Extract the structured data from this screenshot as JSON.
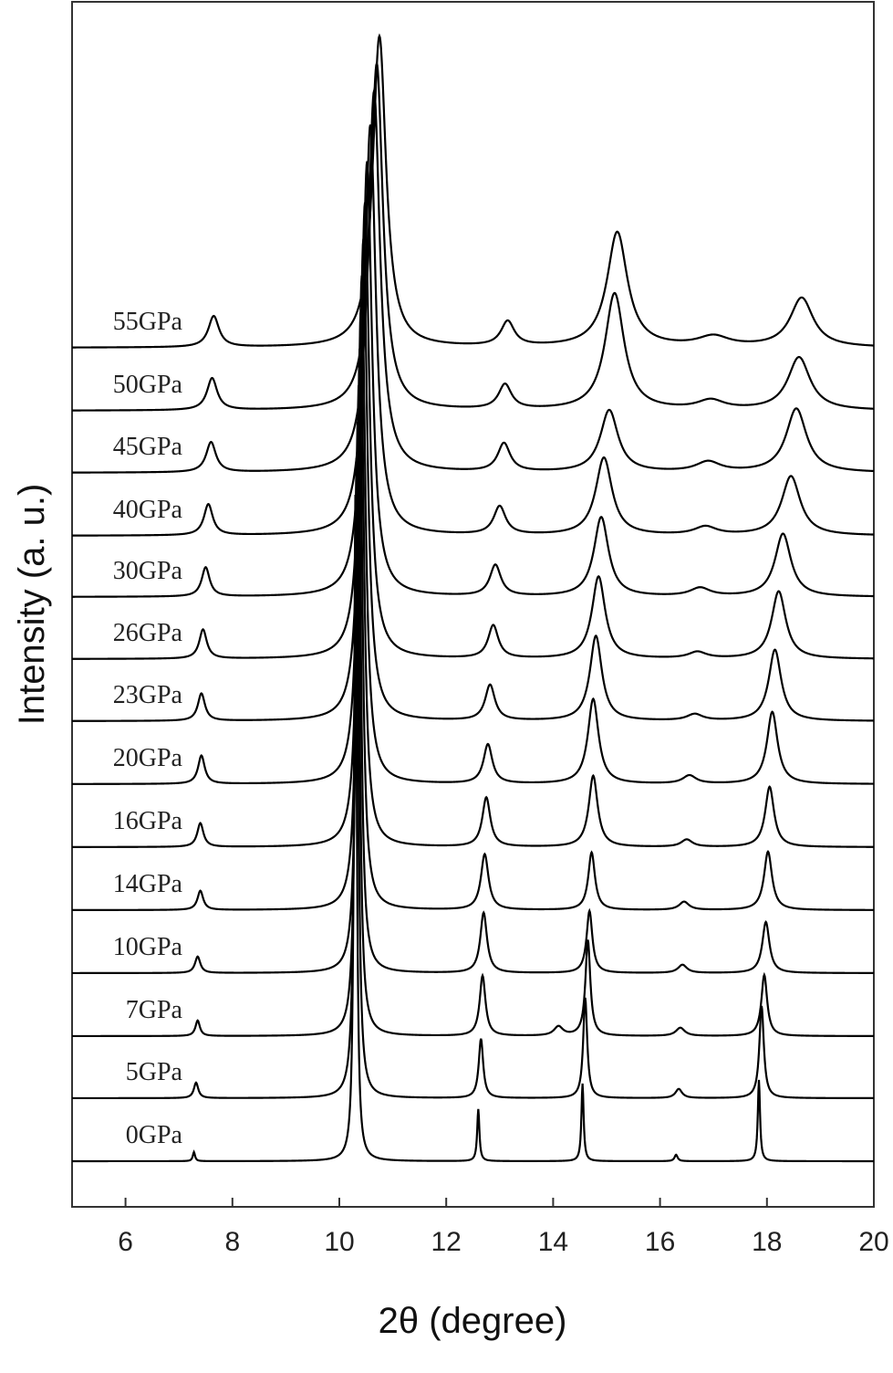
{
  "chart_data": {
    "type": "line",
    "x_label": "2θ  (degree)",
    "y_label": "Intensity  (a. u.)",
    "xlim": [
      5,
      20
    ],
    "xticks": [
      6,
      8,
      10,
      12,
      14,
      16,
      18,
      20
    ],
    "ylim": [
      0,
      130
    ],
    "color": "#000000",
    "series": [
      {
        "name": "0GPa",
        "baseline": 5,
        "x": [
          7.28,
          10.3,
          12.6,
          14.55,
          16.3,
          17.85
        ],
        "values": [
          6,
          78,
          10.7,
          13.5,
          5.7,
          13.9
        ],
        "widths": [
          0.05,
          0.06,
          0.05,
          0.05,
          0.07,
          0.05
        ]
      },
      {
        "name": "5GPa",
        "baseline": 11.9,
        "x": [
          7.32,
          10.32,
          12.65,
          14.6,
          16.35,
          17.9
        ],
        "values": [
          13.6,
          82,
          18.4,
          22.9,
          12.9,
          22
        ],
        "widths": [
          0.1,
          0.08,
          0.1,
          0.09,
          0.15,
          0.1
        ]
      },
      {
        "name": "7GPa",
        "baseline": 18.7,
        "x": [
          7.35,
          10.34,
          12.68,
          14.1,
          14.65,
          16.38,
          17.95
        ],
        "values": [
          20.4,
          86,
          25.3,
          19.7,
          29.2,
          19.6,
          25.4
        ],
        "widths": [
          0.1,
          0.09,
          0.13,
          0.2,
          0.11,
          0.2,
          0.13
        ]
      },
      {
        "name": "10GPa",
        "baseline": 25.6,
        "x": [
          7.35,
          10.36,
          12.7,
          14.68,
          16.42,
          17.98
        ],
        "values": [
          27.4,
          90,
          32.2,
          32.4,
          26.5,
          31.2
        ],
        "widths": [
          0.12,
          0.1,
          0.15,
          0.13,
          0.2,
          0.16
        ]
      },
      {
        "name": "14GPa",
        "baseline": 32.5,
        "x": [
          7.4,
          10.38,
          12.72,
          14.72,
          16.45,
          18.02
        ],
        "values": [
          34.6,
          94,
          38.6,
          38.8,
          33.4,
          38.9
        ],
        "widths": [
          0.13,
          0.12,
          0.17,
          0.15,
          0.22,
          0.18
        ]
      },
      {
        "name": "16GPa",
        "baseline": 39.4,
        "x": [
          7.4,
          10.4,
          12.75,
          14.75,
          16.5,
          18.05
        ],
        "values": [
          42,
          98,
          44.8,
          47.2,
          40.2,
          46
        ],
        "widths": [
          0.14,
          0.14,
          0.18,
          0.2,
          0.25,
          0.2
        ]
      },
      {
        "name": "20GPa",
        "baseline": 46.3,
        "x": [
          7.42,
          10.42,
          12.78,
          14.75,
          16.55,
          18.1
        ],
        "values": [
          49.4,
          102,
          50.6,
          55.6,
          47.2,
          54.2
        ],
        "widths": [
          0.15,
          0.16,
          0.2,
          0.24,
          0.3,
          0.24
        ]
      },
      {
        "name": "23GPa",
        "baseline": 53.2,
        "x": [
          7.42,
          10.45,
          12.82,
          14.8,
          16.65,
          18.15
        ],
        "values": [
          56.2,
          106,
          57.1,
          62.5,
          53.9,
          61
        ],
        "widths": [
          0.16,
          0.18,
          0.22,
          0.27,
          0.35,
          0.28
        ]
      },
      {
        "name": "26GPa",
        "baseline": 60,
        "x": [
          7.45,
          10.48,
          12.88,
          14.85,
          16.7,
          18.22
        ],
        "values": [
          63.2,
          110,
          63.6,
          69,
          60.7,
          67.4
        ],
        "widths": [
          0.17,
          0.2,
          0.23,
          0.3,
          0.4,
          0.32
        ]
      },
      {
        "name": "30GPa",
        "baseline": 66.8,
        "x": [
          7.5,
          10.52,
          12.92,
          14.9,
          16.75,
          18.3
        ],
        "values": [
          70,
          114.5,
          70.2,
          75.5,
          67.7,
          73.7
        ],
        "widths": [
          0.18,
          0.22,
          0.25,
          0.33,
          0.45,
          0.36
        ]
      },
      {
        "name": "40GPa",
        "baseline": 73.5,
        "x": [
          7.55,
          10.58,
          13.0,
          14.95,
          16.85,
          18.45
        ],
        "values": [
          76.9,
          118.5,
          76.6,
          82,
          74.4,
          80
        ],
        "widths": [
          0.2,
          0.25,
          0.27,
          0.37,
          0.5,
          0.42
        ]
      },
      {
        "name": "45GPa",
        "baseline": 80.4,
        "x": [
          7.6,
          10.65,
          13.08,
          15.05,
          16.9,
          18.55
        ],
        "values": [
          83.7,
          122.2,
          83.5,
          87.2,
          81.5,
          87.4
        ],
        "widths": [
          0.22,
          0.27,
          0.28,
          0.4,
          0.55,
          0.46
        ]
      },
      {
        "name": "50GPa",
        "baseline": 87.2,
        "x": [
          7.62,
          10.7,
          13.1,
          15.15,
          16.95,
          18.6
        ],
        "values": [
          90.7,
          125.2,
          89.9,
          100,
          88.2,
          93
        ],
        "widths": [
          0.23,
          0.28,
          0.29,
          0.43,
          0.6,
          0.5
        ]
      },
      {
        "name": "55GPa",
        "baseline": 94.1,
        "x": [
          7.65,
          10.75,
          13.15,
          15.2,
          17.0,
          18.65
        ],
        "values": [
          97.5,
          128.2,
          96.8,
          106.7,
          95.2,
          99.5
        ],
        "widths": [
          0.24,
          0.3,
          0.3,
          0.46,
          0.7,
          0.52
        ]
      }
    ]
  }
}
